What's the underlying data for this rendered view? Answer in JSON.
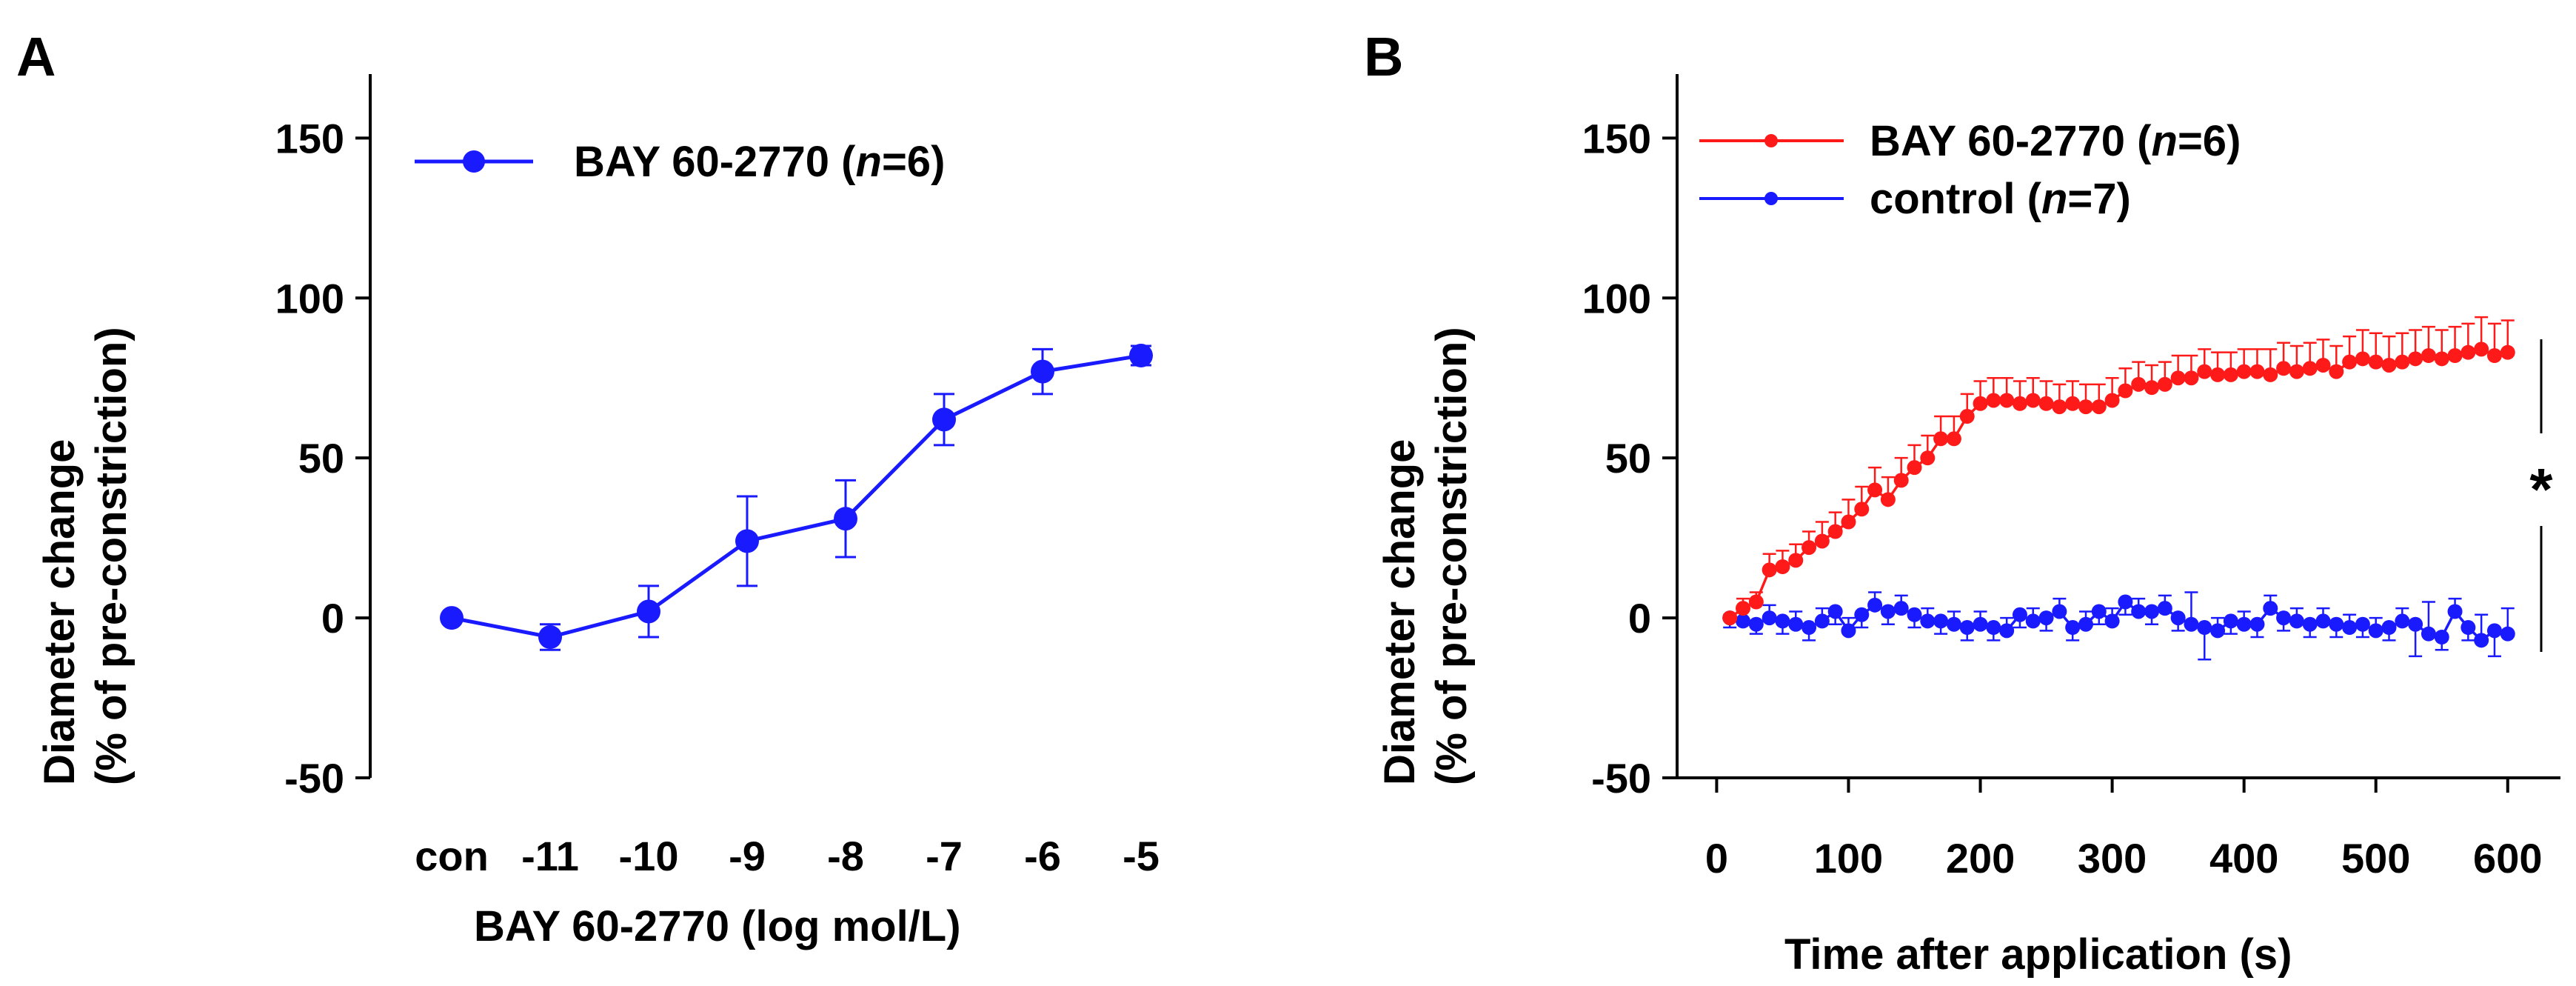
{
  "colors": {
    "blue": "#1a1aff",
    "red": "#ff1a1a",
    "axis": "#000000"
  },
  "chart_data": [
    {
      "panel_label": "A",
      "type": "line",
      "ylabel_line1": "Diameter change",
      "ylabel_line2": "(% of pre-constriction)",
      "xlabel": "BAY 60-2770 (log mol/L)",
      "ylim": [
        -50,
        170
      ],
      "yticks": [
        -50,
        0,
        50,
        100,
        150
      ],
      "categories": [
        "con",
        "-11",
        "-10",
        "-9",
        "-8",
        "-7",
        "-6",
        "-5"
      ],
      "series": [
        {
          "name": "BAY 60-2770",
          "n_label": "n",
          "n_value": "=6)",
          "color": "#1a1aff",
          "values": [
            0,
            -6,
            2,
            24,
            31,
            62,
            77,
            82
          ],
          "sem": [
            0,
            4,
            8,
            14,
            12,
            8,
            7,
            3
          ]
        }
      ]
    },
    {
      "panel_label": "B",
      "type": "line",
      "ylabel_line1": "Diameter change",
      "ylabel_line2": "(% of pre-constriction)",
      "xlabel": "Time after application (s)",
      "ylim": [
        -50,
        170
      ],
      "xlim": [
        -30,
        640
      ],
      "yticks": [
        -50,
        0,
        50,
        100,
        150
      ],
      "xticks": [
        0,
        100,
        200,
        300,
        400,
        500,
        600
      ],
      "significance": "*",
      "series": [
        {
          "name": "BAY 60-2770",
          "n_label": "n",
          "n_value": "=6)",
          "color": "#ff1a1a",
          "x": [
            10,
            20,
            30,
            40,
            50,
            60,
            70,
            80,
            90,
            100,
            110,
            120,
            130,
            140,
            150,
            160,
            170,
            180,
            190,
            200,
            210,
            220,
            230,
            240,
            250,
            260,
            270,
            280,
            290,
            300,
            310,
            320,
            330,
            340,
            350,
            360,
            370,
            380,
            390,
            400,
            410,
            420,
            430,
            440,
            450,
            460,
            470,
            480,
            490,
            500,
            510,
            520,
            530,
            540,
            550,
            560,
            570,
            580,
            590,
            600
          ],
          "values": [
            0,
            3,
            5,
            15,
            16,
            18,
            22,
            24,
            27,
            30,
            34,
            40,
            37,
            43,
            47,
            50,
            56,
            56,
            63,
            67,
            68,
            68,
            67,
            68,
            67,
            66,
            67,
            66,
            66,
            68,
            71,
            73,
            72,
            73,
            75,
            75,
            77,
            76,
            76,
            77,
            77,
            76,
            78,
            77,
            78,
            79,
            77,
            80,
            81,
            80,
            79,
            80,
            81,
            82,
            81,
            82,
            83,
            84,
            82,
            83
          ],
          "sem": [
            1,
            3,
            3,
            5,
            5,
            5,
            5,
            6,
            6,
            7,
            7,
            7,
            7,
            7,
            7,
            7,
            7,
            7,
            7,
            7,
            7,
            7,
            7,
            7,
            7,
            7,
            7,
            7,
            7,
            7,
            7,
            7,
            7,
            7,
            7,
            7,
            7,
            7,
            7,
            7,
            7,
            8,
            8,
            8,
            8,
            8,
            8,
            8,
            9,
            9,
            9,
            9,
            9,
            9,
            9,
            9,
            9,
            10,
            10,
            10
          ]
        },
        {
          "name": "control",
          "n_label": "n",
          "n_value": "=7)",
          "color": "#1a1aff",
          "x": [
            10,
            20,
            30,
            40,
            50,
            60,
            70,
            80,
            90,
            100,
            110,
            120,
            130,
            140,
            150,
            160,
            170,
            180,
            190,
            200,
            210,
            220,
            230,
            240,
            250,
            260,
            270,
            280,
            290,
            300,
            310,
            320,
            330,
            340,
            350,
            360,
            370,
            380,
            390,
            400,
            410,
            420,
            430,
            440,
            450,
            460,
            470,
            480,
            490,
            500,
            510,
            520,
            530,
            540,
            550,
            560,
            570,
            580,
            590,
            600
          ],
          "values": [
            0,
            -1,
            -2,
            0,
            -1,
            -2,
            -3,
            -1,
            2,
            -4,
            1,
            4,
            2,
            3,
            1,
            -1,
            -1,
            -2,
            -3,
            -2,
            -3,
            -4,
            1,
            -1,
            0,
            2,
            -3,
            -2,
            2,
            -1,
            5,
            2,
            2,
            3,
            0,
            -2,
            -3,
            -4,
            -1,
            -2,
            -2,
            3,
            0,
            -1,
            -2,
            -1,
            -2,
            -3,
            -2,
            -4,
            -3,
            -1,
            -2,
            -5,
            -6,
            2,
            -3,
            -7,
            -4,
            -5
          ],
          "sem": [
            3,
            4,
            3,
            4,
            4,
            4,
            4,
            4,
            4,
            4,
            4,
            4,
            4,
            4,
            4,
            4,
            4,
            4,
            4,
            4,
            4,
            4,
            4,
            4,
            4,
            4,
            4,
            4,
            4,
            4,
            4,
            4,
            4,
            4,
            4,
            10,
            10,
            4,
            4,
            4,
            4,
            4,
            4,
            4,
            4,
            4,
            4,
            4,
            4,
            4,
            4,
            4,
            10,
            10,
            4,
            4,
            4,
            8,
            8,
            8
          ]
        }
      ]
    }
  ]
}
